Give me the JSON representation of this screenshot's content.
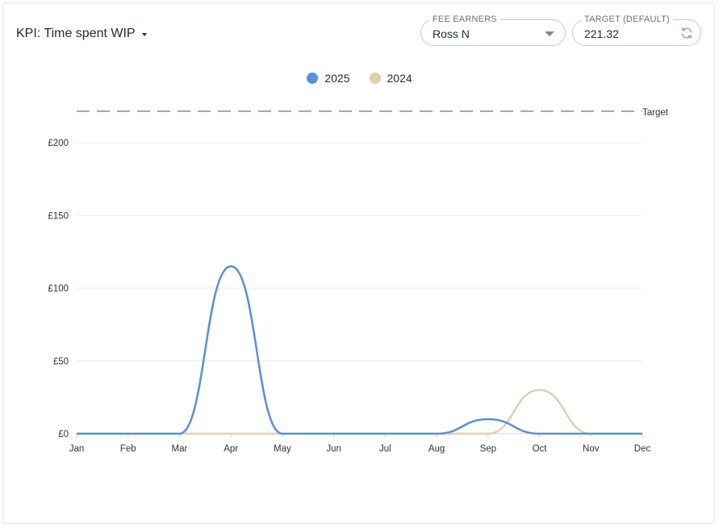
{
  "header": {
    "kpi_prefix": "KPI:",
    "kpi_title": "Time spent WIP"
  },
  "filters": {
    "fee_earners_label": "FEE EARNERS",
    "fee_earners_value": "Ross N",
    "target_label": "TARGET (DEFAULT)",
    "target_value": "221.32"
  },
  "chart_data": {
    "type": "line",
    "title": "",
    "xlabel": "",
    "ylabel": "",
    "categories": [
      "Jan",
      "Feb",
      "Mar",
      "Apr",
      "May",
      "Jun",
      "Jul",
      "Aug",
      "Sep",
      "Oct",
      "Nov",
      "Dec"
    ],
    "ylim": [
      0,
      200
    ],
    "yticks": [
      0,
      50,
      100,
      150,
      200
    ],
    "ytick_labels": [
      "£0",
      "£50",
      "£100",
      "£150",
      "£200"
    ],
    "grid": true,
    "legend_position": "top-center",
    "series": [
      {
        "name": "2025",
        "color": "#5b8fdc",
        "values": [
          0,
          0,
          0,
          115,
          0,
          0,
          0,
          0,
          10,
          0,
          0,
          0
        ]
      },
      {
        "name": "2024",
        "color": "#e0d0b2",
        "values": [
          0,
          0,
          0,
          0,
          0,
          0,
          0,
          0,
          0,
          30,
          0,
          0
        ]
      }
    ],
    "target": {
      "label": "Target",
      "value": 221.32,
      "color": "#a8a8a8"
    }
  }
}
